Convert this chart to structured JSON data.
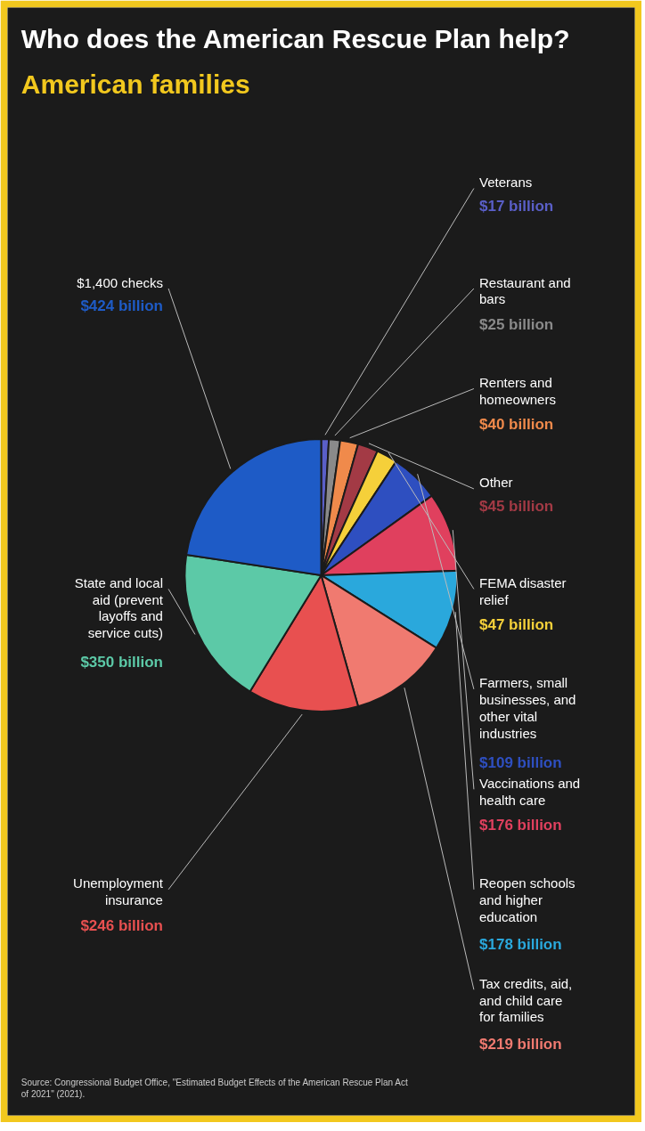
{
  "chart_data": {
    "type": "pie",
    "title": "Who does the American Rescue Plan help?",
    "subtitle": "American families",
    "categories": [
      "Veterans",
      "Restaurant and bars",
      "Renters and homeowners",
      "Other",
      "FEMA disaster relief",
      "Farmers, small businesses, and other vital industries",
      "Vaccinations and health care",
      "Reopen schools and higher education",
      "Tax credits, aid, and child care for families",
      "Unemployment insurance",
      "State and local aid (prevent layoffs and service cuts)",
      "$1,400 checks"
    ],
    "values": [
      17,
      25,
      40,
      45,
      47,
      109,
      176,
      178,
      219,
      246,
      350,
      424
    ],
    "value_labels": [
      "$17 billion",
      "$25 billion",
      "$40 billion",
      "$45 billion",
      "$47 billion",
      "$109 billion",
      "$176 billion",
      "$178 billion",
      "$219 billion",
      "$246 billion",
      "$350 billion",
      "$424 billion"
    ],
    "colors": [
      "#5a5fc8",
      "#8a8a8a",
      "#f08a4b",
      "#a33a45",
      "#f5d03a",
      "#2e4fc0",
      "#e0405e",
      "#2aa8dc",
      "#f07a70",
      "#e85050",
      "#5cc9a7",
      "#1e5bc6"
    ],
    "annotations": [
      "Source: Congressional Budget Office, \"Estimated Budget Effects of the American Rescue Plan Act of 2021\" (2021)."
    ]
  }
}
